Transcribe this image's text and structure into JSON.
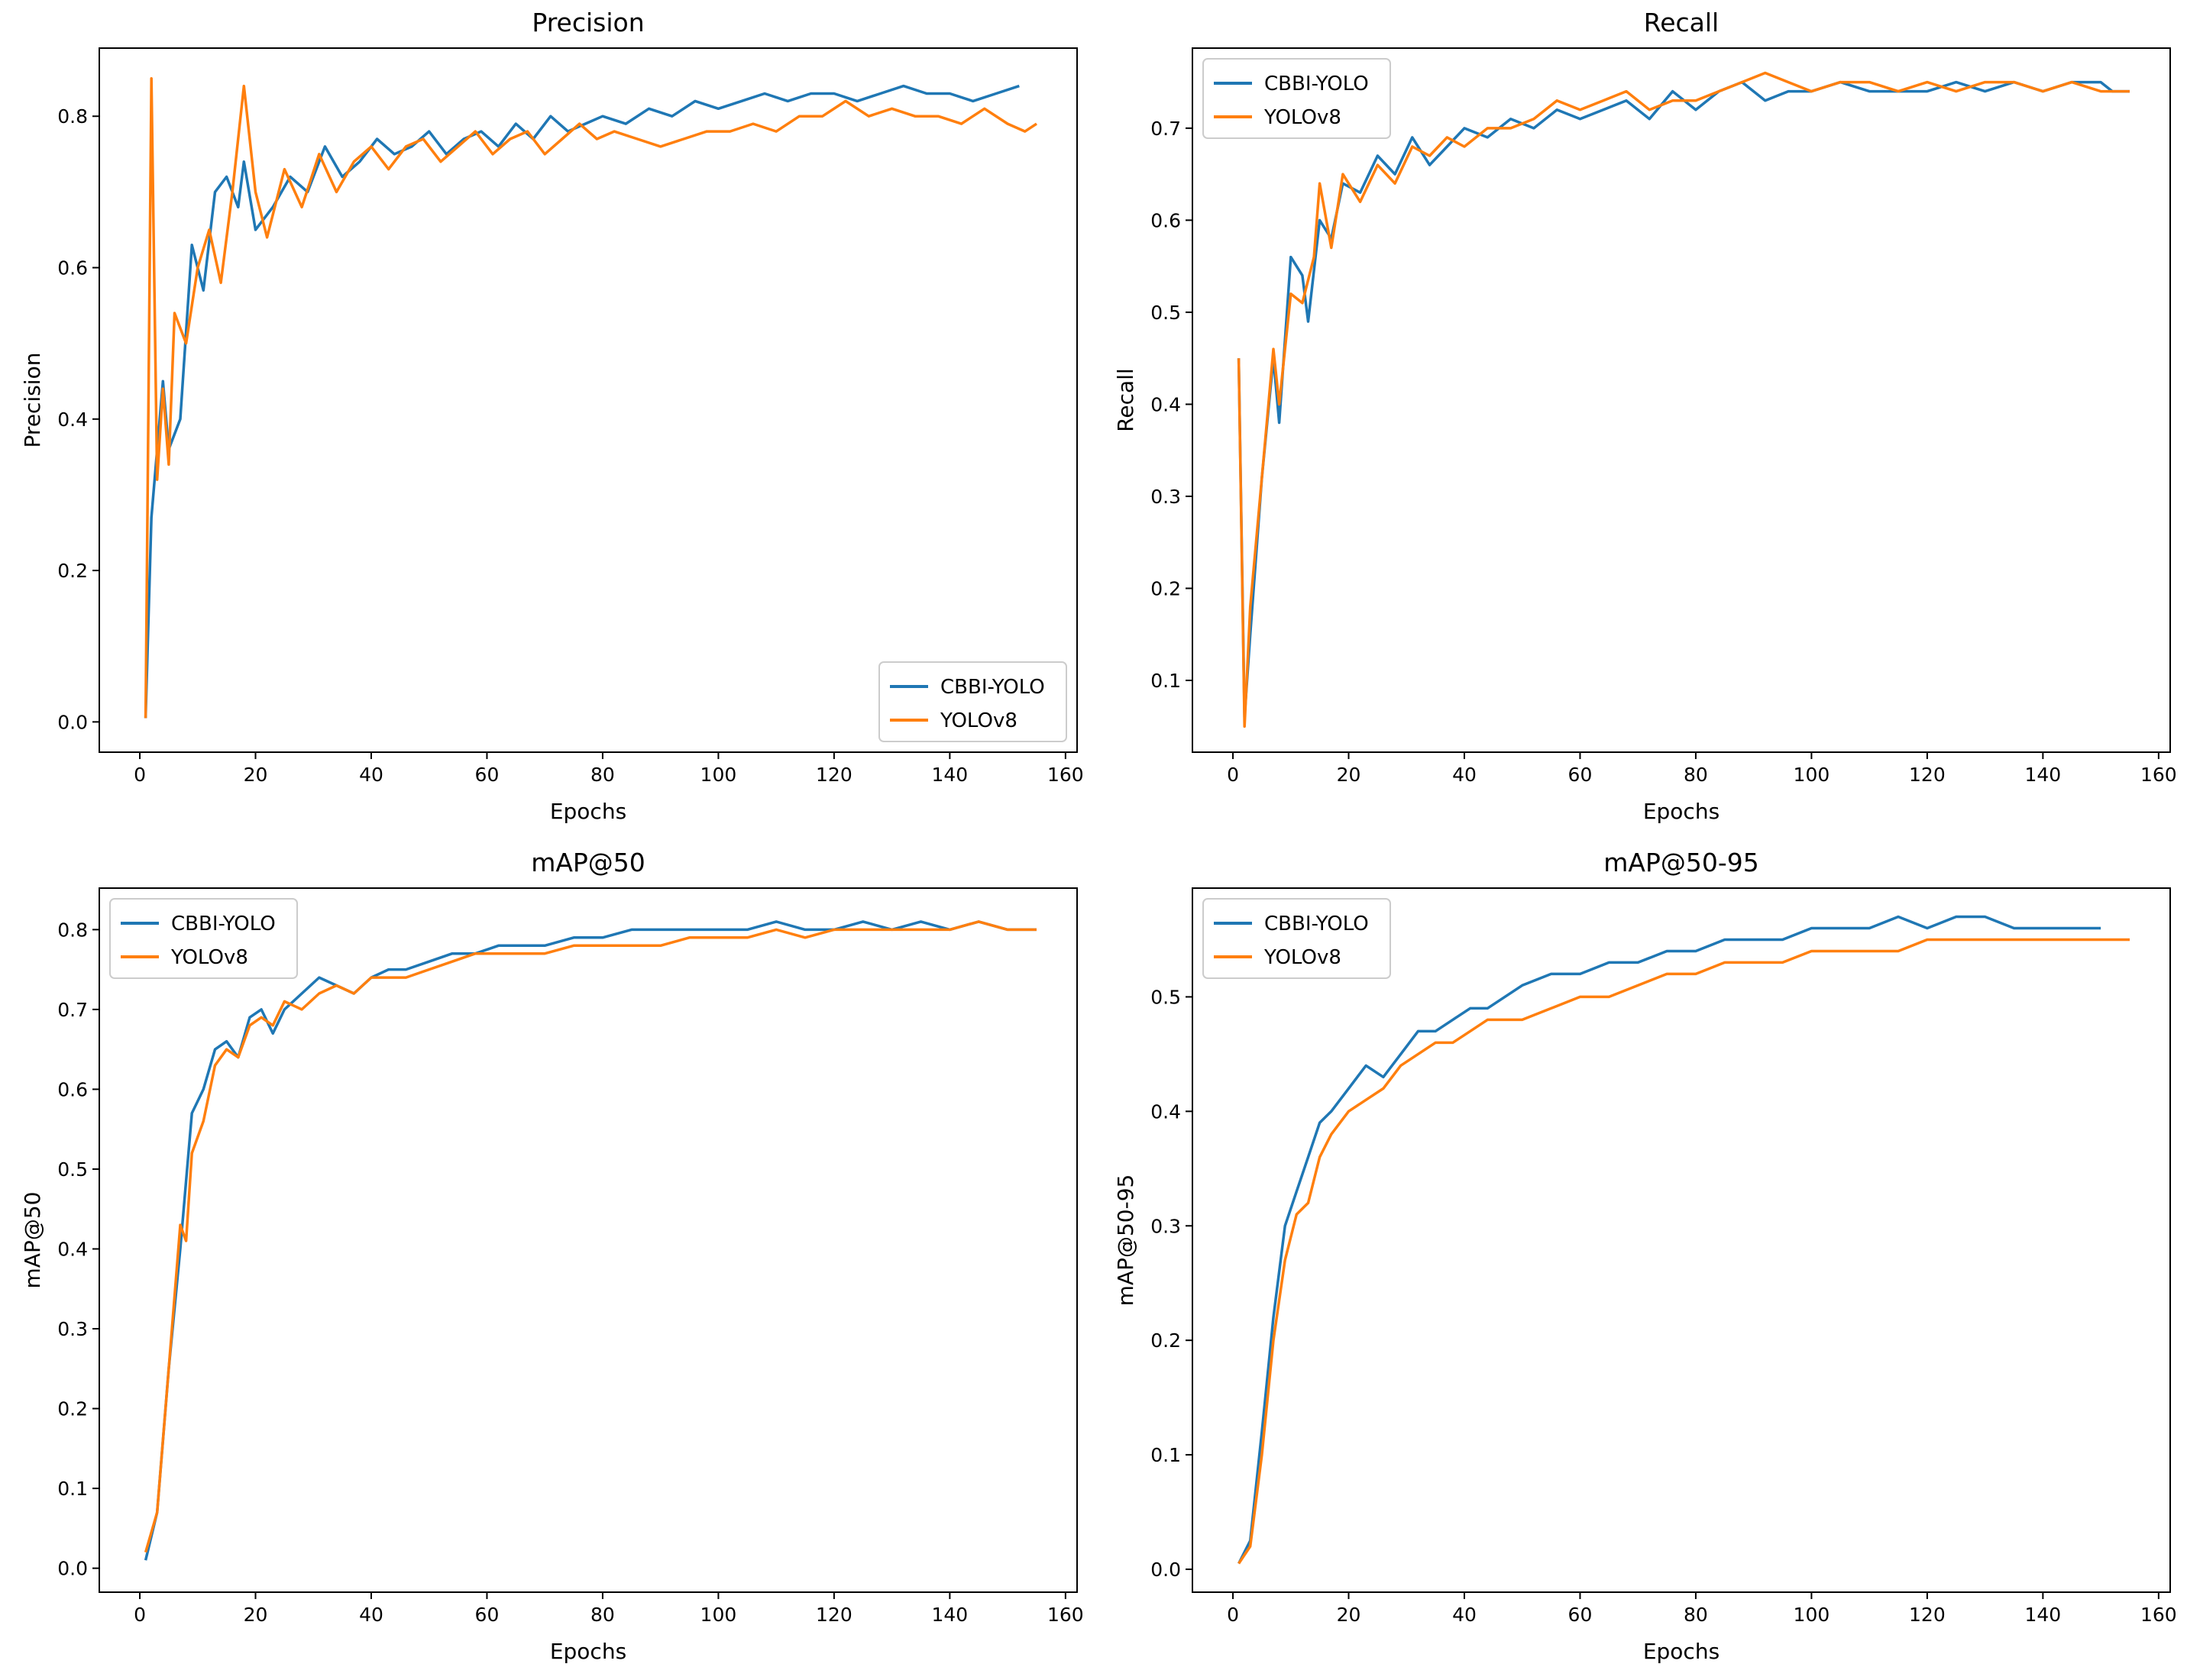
{
  "colors": {
    "cbbi": "#1f77b4",
    "yolo": "#ff7f0e"
  },
  "legend_labels": [
    "CBBI-YOLO",
    "YOLOv8"
  ],
  "chart_data": [
    {
      "type": "line",
      "title": "Precision",
      "xlabel": "Epochs",
      "ylabel": "Precision",
      "xlim": [
        -7,
        162
      ],
      "ylim": [
        -0.04,
        0.89
      ],
      "xticks": [
        0,
        20,
        40,
        60,
        80,
        100,
        120,
        140,
        160
      ],
      "yticks": [
        0.0,
        0.2,
        0.4,
        0.6,
        0.8
      ],
      "ytick_labels": [
        "0.0",
        "0.2",
        "0.4",
        "0.6",
        "0.8"
      ],
      "legend": "lower-right",
      "series": [
        {
          "name": "CBBI-YOLO",
          "x": [
            1,
            2,
            4,
            5,
            7,
            9,
            11,
            13,
            15,
            17,
            18,
            20,
            23,
            26,
            29,
            32,
            35,
            38,
            41,
            44,
            47,
            50,
            53,
            56,
            59,
            62,
            65,
            68,
            71,
            74,
            77,
            80,
            84,
            88,
            92,
            96,
            100,
            104,
            108,
            112,
            116,
            120,
            124,
            128,
            132,
            136,
            140,
            144,
            148,
            152
          ],
          "values": [
            0.005,
            0.27,
            0.45,
            0.36,
            0.4,
            0.63,
            0.57,
            0.7,
            0.72,
            0.68,
            0.74,
            0.65,
            0.68,
            0.72,
            0.7,
            0.76,
            0.72,
            0.74,
            0.77,
            0.75,
            0.76,
            0.78,
            0.75,
            0.77,
            0.78,
            0.76,
            0.79,
            0.77,
            0.8,
            0.78,
            0.79,
            0.8,
            0.79,
            0.81,
            0.8,
            0.82,
            0.81,
            0.82,
            0.83,
            0.82,
            0.83,
            0.83,
            0.82,
            0.83,
            0.84,
            0.83,
            0.83,
            0.82,
            0.83,
            0.84
          ]
        },
        {
          "name": "YOLOv8",
          "x": [
            1,
            2,
            3,
            4,
            5,
            6,
            8,
            10,
            12,
            14,
            16,
            18,
            20,
            22,
            25,
            28,
            31,
            34,
            37,
            40,
            43,
            46,
            49,
            52,
            55,
            58,
            61,
            64,
            67,
            70,
            73,
            76,
            79,
            82,
            86,
            90,
            94,
            98,
            102,
            106,
            110,
            114,
            118,
            122,
            126,
            130,
            134,
            138,
            142,
            146,
            150,
            153,
            155
          ],
          "values": [
            0.005,
            0.85,
            0.32,
            0.44,
            0.34,
            0.54,
            0.5,
            0.6,
            0.65,
            0.58,
            0.7,
            0.84,
            0.7,
            0.64,
            0.73,
            0.68,
            0.75,
            0.7,
            0.74,
            0.76,
            0.73,
            0.76,
            0.77,
            0.74,
            0.76,
            0.78,
            0.75,
            0.77,
            0.78,
            0.75,
            0.77,
            0.79,
            0.77,
            0.78,
            0.77,
            0.76,
            0.77,
            0.78,
            0.78,
            0.79,
            0.78,
            0.8,
            0.8,
            0.82,
            0.8,
            0.81,
            0.8,
            0.8,
            0.79,
            0.81,
            0.79,
            0.78,
            0.79
          ]
        }
      ]
    },
    {
      "type": "line",
      "title": "Recall",
      "xlabel": "Epochs",
      "ylabel": "Recall",
      "xlim": [
        -7,
        162
      ],
      "ylim": [
        0.022,
        0.787
      ],
      "xticks": [
        0,
        20,
        40,
        60,
        80,
        100,
        120,
        140,
        160
      ],
      "yticks": [
        0.1,
        0.2,
        0.3,
        0.4,
        0.5,
        0.6,
        0.7
      ],
      "ytick_labels": [
        "0.1",
        "0.2",
        "0.3",
        "0.4",
        "0.5",
        "0.6",
        "0.7"
      ],
      "legend": "top-left",
      "series": [
        {
          "name": "CBBI-YOLO",
          "x": [
            1,
            2,
            3,
            5,
            7,
            8,
            10,
            12,
            13,
            15,
            17,
            19,
            22,
            25,
            28,
            31,
            34,
            37,
            40,
            44,
            48,
            52,
            56,
            60,
            64,
            68,
            72,
            76,
            80,
            84,
            88,
            92,
            96,
            100,
            105,
            110,
            115,
            120,
            125,
            130,
            135,
            140,
            145,
            150,
            152,
            155
          ],
          "values": [
            0.45,
            0.06,
            0.15,
            0.32,
            0.45,
            0.38,
            0.56,
            0.54,
            0.49,
            0.6,
            0.58,
            0.64,
            0.63,
            0.67,
            0.65,
            0.69,
            0.66,
            0.68,
            0.7,
            0.69,
            0.71,
            0.7,
            0.72,
            0.71,
            0.72,
            0.73,
            0.71,
            0.74,
            0.72,
            0.74,
            0.75,
            0.73,
            0.74,
            0.74,
            0.75,
            0.74,
            0.74,
            0.74,
            0.75,
            0.74,
            0.75,
            0.74,
            0.75,
            0.75,
            0.74,
            0.74
          ]
        },
        {
          "name": "YOLOv8",
          "x": [
            1,
            2,
            3,
            5,
            7,
            8,
            10,
            12,
            14,
            15,
            17,
            19,
            22,
            25,
            28,
            31,
            34,
            37,
            40,
            44,
            48,
            52,
            56,
            60,
            64,
            68,
            72,
            76,
            80,
            84,
            88,
            92,
            96,
            100,
            105,
            110,
            115,
            120,
            125,
            130,
            135,
            140,
            145,
            150,
            153,
            155
          ],
          "values": [
            0.45,
            0.05,
            0.18,
            0.32,
            0.46,
            0.4,
            0.52,
            0.51,
            0.56,
            0.64,
            0.57,
            0.65,
            0.62,
            0.66,
            0.64,
            0.68,
            0.67,
            0.69,
            0.68,
            0.7,
            0.7,
            0.71,
            0.73,
            0.72,
            0.73,
            0.74,
            0.72,
            0.73,
            0.73,
            0.74,
            0.75,
            0.76,
            0.75,
            0.74,
            0.75,
            0.75,
            0.74,
            0.75,
            0.74,
            0.75,
            0.75,
            0.74,
            0.75,
            0.74,
            0.74,
            0.74
          ]
        }
      ]
    },
    {
      "type": "line",
      "title": "mAP@50",
      "xlabel": "Epochs",
      "ylabel": "mAP@50",
      "xlim": [
        -7,
        162
      ],
      "ylim": [
        -0.03,
        0.852
      ],
      "xticks": [
        0,
        20,
        40,
        60,
        80,
        100,
        120,
        140,
        160
      ],
      "yticks": [
        0.0,
        0.1,
        0.2,
        0.3,
        0.4,
        0.5,
        0.6,
        0.7,
        0.8
      ],
      "ytick_labels": [
        "0.0",
        "0.1",
        "0.2",
        "0.3",
        "0.4",
        "0.5",
        "0.6",
        "0.7",
        "0.8"
      ],
      "legend": "top-left",
      "series": [
        {
          "name": "CBBI-YOLO",
          "x": [
            1,
            3,
            5,
            7,
            9,
            11,
            13,
            15,
            17,
            19,
            21,
            23,
            25,
            28,
            31,
            34,
            37,
            40,
            43,
            46,
            50,
            54,
            58,
            62,
            66,
            70,
            75,
            80,
            85,
            90,
            95,
            100,
            105,
            110,
            115,
            120,
            125,
            130,
            135,
            140,
            145,
            150,
            153,
            155
          ],
          "values": [
            0.01,
            0.07,
            0.25,
            0.4,
            0.57,
            0.6,
            0.65,
            0.66,
            0.64,
            0.69,
            0.7,
            0.67,
            0.7,
            0.72,
            0.74,
            0.73,
            0.72,
            0.74,
            0.75,
            0.75,
            0.76,
            0.77,
            0.77,
            0.78,
            0.78,
            0.78,
            0.79,
            0.79,
            0.8,
            0.8,
            0.8,
            0.8,
            0.8,
            0.81,
            0.8,
            0.8,
            0.81,
            0.8,
            0.81,
            0.8,
            0.81,
            0.8,
            0.8,
            0.8
          ]
        },
        {
          "name": "YOLOv8",
          "x": [
            1,
            3,
            5,
            7,
            8,
            9,
            11,
            13,
            15,
            17,
            19,
            21,
            23,
            25,
            28,
            31,
            34,
            37,
            40,
            43,
            46,
            50,
            54,
            58,
            62,
            66,
            70,
            75,
            80,
            85,
            90,
            95,
            100,
            105,
            110,
            115,
            120,
            125,
            130,
            135,
            140,
            145,
            150,
            153,
            155
          ],
          "values": [
            0.02,
            0.07,
            0.25,
            0.43,
            0.41,
            0.52,
            0.56,
            0.63,
            0.65,
            0.64,
            0.68,
            0.69,
            0.68,
            0.71,
            0.7,
            0.72,
            0.73,
            0.72,
            0.74,
            0.74,
            0.74,
            0.75,
            0.76,
            0.77,
            0.77,
            0.77,
            0.77,
            0.78,
            0.78,
            0.78,
            0.78,
            0.79,
            0.79,
            0.79,
            0.8,
            0.79,
            0.8,
            0.8,
            0.8,
            0.8,
            0.8,
            0.81,
            0.8,
            0.8,
            0.8
          ]
        }
      ]
    },
    {
      "type": "line",
      "title": "mAP@50-95",
      "xlabel": "Epochs",
      "ylabel": "mAP@50-95",
      "xlim": [
        -7,
        162
      ],
      "ylim": [
        -0.02,
        0.595
      ],
      "xticks": [
        0,
        20,
        40,
        60,
        80,
        100,
        120,
        140,
        160
      ],
      "yticks": [
        0.0,
        0.1,
        0.2,
        0.3,
        0.4,
        0.5
      ],
      "ytick_labels": [
        "0.0",
        "0.1",
        "0.2",
        "0.3",
        "0.4",
        "0.5"
      ],
      "legend": "top-left",
      "series": [
        {
          "name": "CBBI-YOLO",
          "x": [
            1,
            3,
            5,
            7,
            9,
            11,
            13,
            15,
            17,
            20,
            23,
            26,
            29,
            32,
            35,
            38,
            41,
            44,
            47,
            50,
            55,
            60,
            65,
            70,
            75,
            80,
            85,
            90,
            95,
            100,
            105,
            110,
            115,
            120,
            125,
            130,
            135,
            140,
            145,
            150
          ],
          "values": [
            0.005,
            0.025,
            0.12,
            0.22,
            0.3,
            0.33,
            0.36,
            0.39,
            0.4,
            0.42,
            0.44,
            0.43,
            0.45,
            0.47,
            0.47,
            0.48,
            0.49,
            0.49,
            0.5,
            0.51,
            0.52,
            0.52,
            0.53,
            0.53,
            0.54,
            0.54,
            0.55,
            0.55,
            0.55,
            0.56,
            0.56,
            0.56,
            0.57,
            0.56,
            0.57,
            0.57,
            0.56,
            0.56,
            0.56,
            0.56
          ]
        },
        {
          "name": "YOLOv8",
          "x": [
            1,
            3,
            5,
            7,
            9,
            11,
            13,
            15,
            17,
            20,
            23,
            26,
            29,
            32,
            35,
            38,
            41,
            44,
            47,
            50,
            55,
            60,
            65,
            70,
            75,
            80,
            85,
            90,
            95,
            100,
            105,
            110,
            115,
            120,
            125,
            130,
            135,
            140,
            145,
            150,
            155
          ],
          "values": [
            0.005,
            0.02,
            0.1,
            0.2,
            0.27,
            0.31,
            0.32,
            0.36,
            0.38,
            0.4,
            0.41,
            0.42,
            0.44,
            0.45,
            0.46,
            0.46,
            0.47,
            0.48,
            0.48,
            0.48,
            0.49,
            0.5,
            0.5,
            0.51,
            0.52,
            0.52,
            0.53,
            0.53,
            0.53,
            0.54,
            0.54,
            0.54,
            0.54,
            0.55,
            0.55,
            0.55,
            0.55,
            0.55,
            0.55,
            0.55,
            0.55
          ]
        }
      ]
    }
  ]
}
